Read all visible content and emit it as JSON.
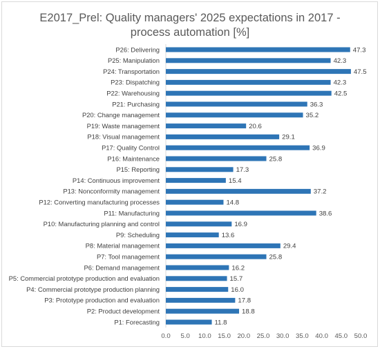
{
  "chart_data": {
    "type": "bar",
    "orientation": "horizontal",
    "title_lines": [
      "E2017_Prel: Quality managers' 2025 expectations in 2017 -",
      "process automation [%]"
    ],
    "categories": [
      "P26: Delivering",
      "P25: Manipulation",
      "P24: Transportation",
      "P23: Dispatching",
      "P22: Warehousing",
      "P21: Purchasing",
      "P20: Change management",
      "P19: Waste management",
      "P18: Visual management",
      "P17: Quality Control",
      "P16: Maintenance",
      "P15: Reporting",
      "P14: Continuous improvement",
      "P13: Nonconformity management",
      "P12: Converting manufacturing processes",
      "P11: Manufacturing",
      "P10: Manufacturing planning and control",
      "P9: Scheduling",
      "P8: Material management",
      "P7: Tool management",
      "P6: Demand management",
      "P5: Commercial prototype production and evaluation",
      "P4: Commercial prototype production planning",
      "P3: Prototype production and evaluation",
      "P2: Product development",
      "P1: Forecasting"
    ],
    "values": [
      47.3,
      42.3,
      47.5,
      42.3,
      42.5,
      36.3,
      35.2,
      20.6,
      29.1,
      36.9,
      25.8,
      17.3,
      15.4,
      37.2,
      14.8,
      38.6,
      16.9,
      13.6,
      29.4,
      25.8,
      16.2,
      15.7,
      16.0,
      17.8,
      18.8,
      11.8
    ],
    "data_labels": [
      "47.3",
      "42.3",
      "47.5",
      "42.3",
      "42.5",
      "36.3",
      "35.2",
      "20.6",
      "29.1",
      "36.9",
      "25.8",
      "17.3",
      "15.4",
      "37.2",
      "14.8",
      "38.6",
      "16.9",
      "13.6",
      "29.4",
      "25.8",
      "16.2",
      "15.7",
      "16.0",
      "17.8",
      "18.8",
      "11.8"
    ],
    "xlim": [
      0,
      50
    ],
    "x_ticks": [
      "0.0",
      "5.0",
      "10.0",
      "15.0",
      "20.0",
      "25.0",
      "30.0",
      "35.0",
      "40.0",
      "45.0",
      "50.0"
    ],
    "grid": false,
    "legend": "none",
    "bar_color": "#2e75b6"
  }
}
